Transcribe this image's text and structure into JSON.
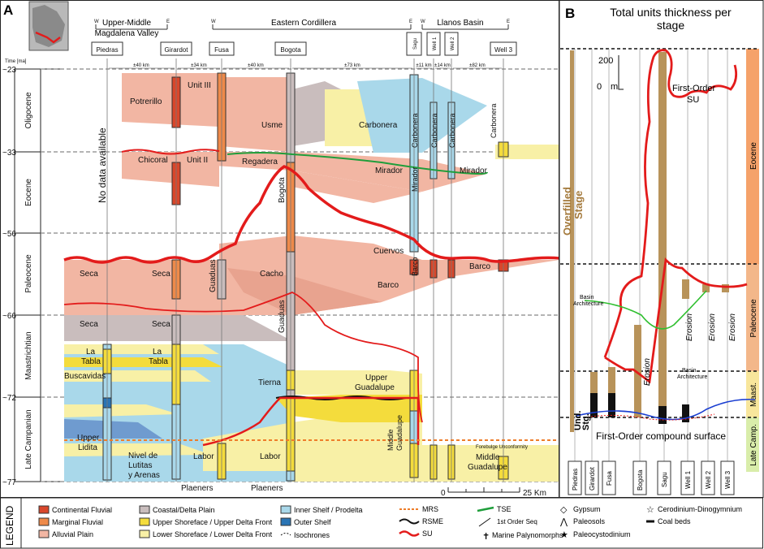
{
  "panel_a": {
    "letter": "A",
    "time_axis_label": "Time [ma]",
    "ages": [
      "~23",
      "~33",
      "~56",
      "~66",
      "~72",
      "~77"
    ],
    "epochs": [
      "Oligocene",
      "Eocene",
      "Paleocene",
      "Maastrichtian",
      "Late Campanian"
    ],
    "regions": [
      "Upper-Middle\nMagdalena Valley",
      "Eastern Cordillera",
      "Llanos Basin"
    ],
    "region_line1": "Upper-Middle",
    "region_line2": "Magdalena Valley",
    "region_ec": "Eastern Cordillera",
    "region_llanos": "Llanos Basin",
    "w_label": "W",
    "e_label": "E",
    "wells": [
      "Piedras",
      "Girardot",
      "Fusa",
      "Bogota",
      "Sagu",
      "Well 1",
      "Well 2",
      "Well 3"
    ],
    "distances": [
      "±40 km",
      "±34 km",
      "±40 km",
      "±73 km",
      "±11 km",
      "±14 km",
      "±82 km"
    ],
    "no_data": "No data available",
    "units": {
      "potrerillo": "Potrerillo",
      "unit3": "Unit III",
      "usme": "Usme",
      "carbonera": "Carbonera",
      "chicoral": "Chicoral",
      "unit2": "Unit II",
      "regadera": "Regadera",
      "mirador": "Mirador",
      "bogota": "Bogota",
      "cuervos": "Cuervos",
      "seca": "Seca",
      "guaduas": "Guaduas",
      "cacho": "Cacho",
      "barco": "Barco",
      "la": "La",
      "tabla": "Tabla",
      "buscavidas": "Buscavidas",
      "tierna": "Tierna",
      "upper": "Upper",
      "guadalupe": "Guadalupe",
      "middle": "Middle",
      "lidita": "Lidita",
      "nivel1": "Nivel de",
      "nivel2": "Lutitas",
      "nivel3": "y Arenas",
      "labor": "Labor",
      "plaeners": "Plaeners"
    },
    "forebulge_label": "Forebulge Unconformity",
    "scale_zero": "0",
    "scale_label": "25 Km"
  },
  "panel_b": {
    "letter": "B",
    "title_line1": "Total units thickness per",
    "title_line2": "stage",
    "scale_value": "200",
    "scale_zero": "0",
    "scale_unit": "m",
    "first_order_su1": "First-Order",
    "first_order_su2": "SU",
    "overfilled1": "Overfilled",
    "overfilled2": "Stage",
    "basin_arch": "Basin\nArchitecture",
    "basin_arch1": "Basin",
    "basin_arch2": "Architecture",
    "erosion": "Erosion",
    "und1": "Und.",
    "und2": "Stg.",
    "compound": "First-Order compound surface",
    "stages": [
      "Eocene",
      "Paleocene",
      "Maast.",
      "Late Camp."
    ],
    "wells": [
      "Piedras",
      "Girardot",
      "Fusa",
      "Bogota",
      "Sagu",
      "Well 1",
      "Well 2",
      "Well 3"
    ]
  },
  "legend": {
    "title": "LEGEND",
    "facies": [
      {
        "label": "Continental Fluvial",
        "color": "#d9472b"
      },
      {
        "label": "Marginal Fluvial",
        "color": "#ee8a4a"
      },
      {
        "label": "Alluvial Plain",
        "color": "#f2b6a3"
      },
      {
        "label": "Coastal/Delta Plain",
        "color": "#c9bdbd"
      },
      {
        "label": "Upper Shoreface / Upper Delta Front",
        "color": "#f4dc3c"
      },
      {
        "label": "Lower Shoreface / Lower Delta Front",
        "color": "#f8f0a6"
      },
      {
        "label": "Inner Shelf / Prodelta",
        "color": "#a9d8ea"
      },
      {
        "label": "Outer Shelf",
        "color": "#2a74b4"
      }
    ],
    "isochrones": "Isochrones",
    "surfaces": [
      "MRS",
      "RSME",
      "SU",
      "TSE",
      "1st Order Seq"
    ],
    "symbols": [
      "Gypsum",
      "Paleosols",
      "Paleocystodinium",
      "Cerodinium-Dinogymnium",
      "Coal beds",
      "Marine Palynomorphs"
    ]
  }
}
